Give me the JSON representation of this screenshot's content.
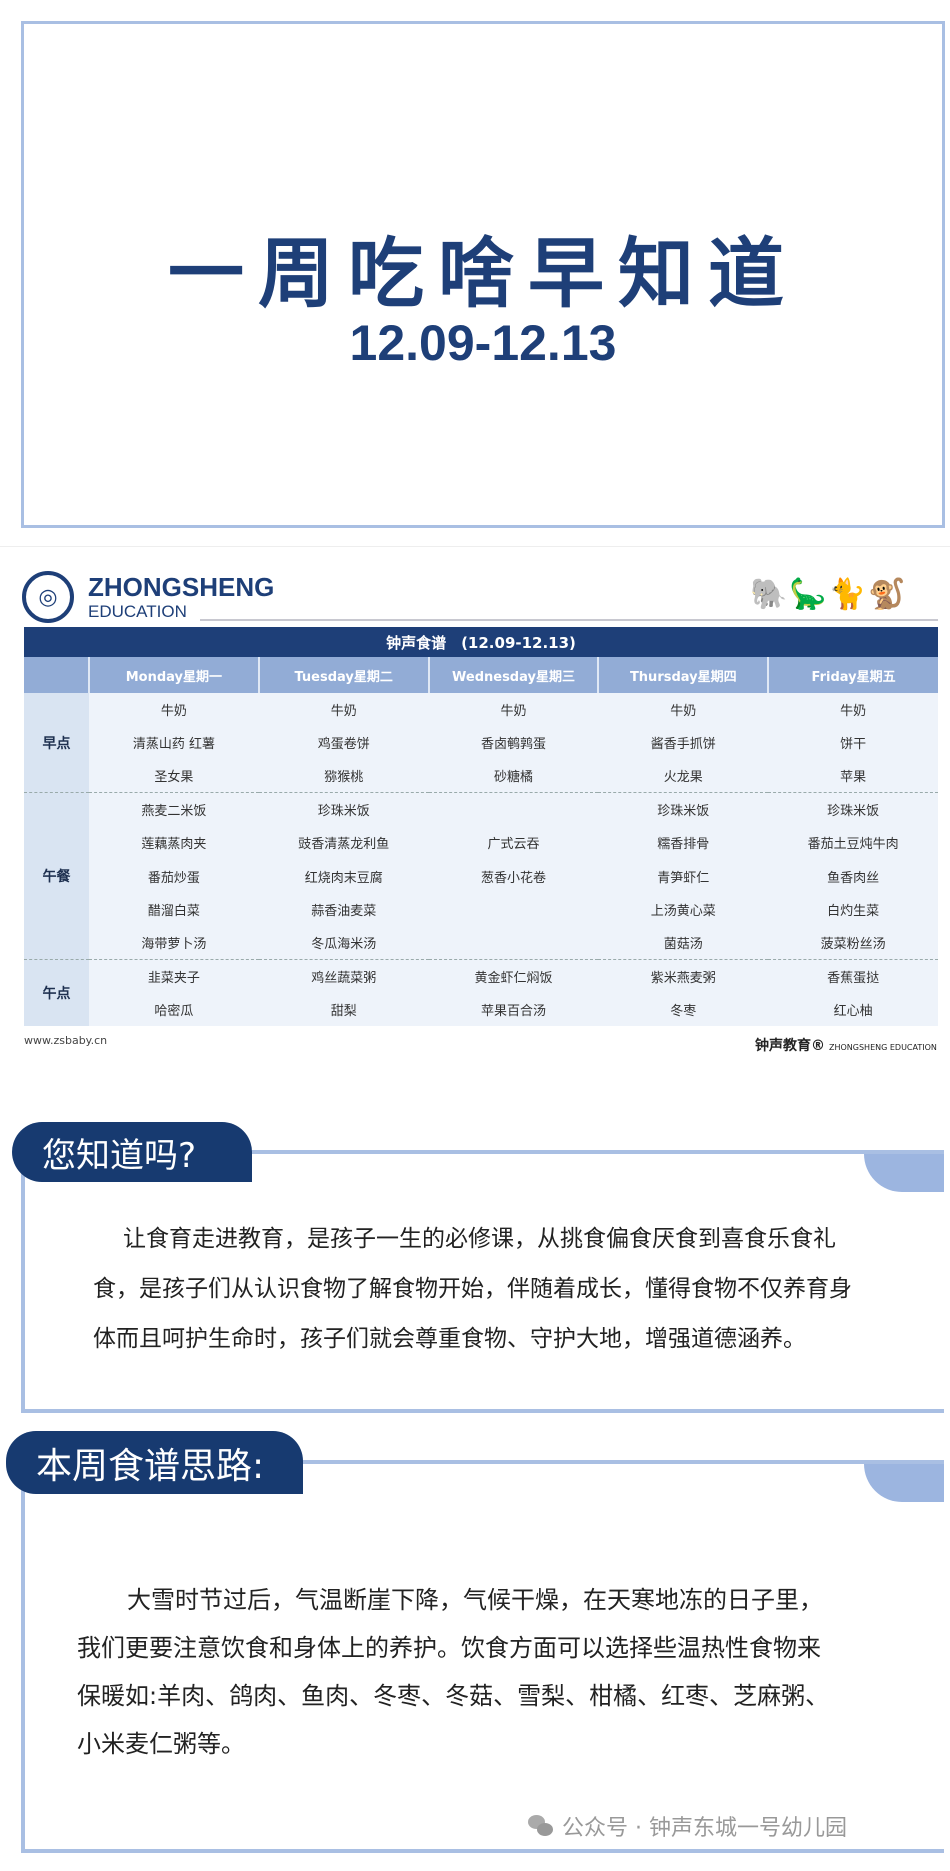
{
  "hero": {
    "title": "一周吃啥早知道",
    "date": "12.09-12.13"
  },
  "brand": {
    "name": "ZHONGSHENG",
    "sub": "EDUCATION",
    "website": "www.zsbaby.cn",
    "footer_cn": "钟声教育",
    "footer_en": "ZHONGSHENG EDUCATION"
  },
  "menu": {
    "title": "钟声食谱　(12.09-12.13)",
    "days": [
      "Monday星期一",
      "Tuesday星期二",
      "Wednesday星期三",
      "Thursday星期四",
      "Friday星期五"
    ],
    "sections": [
      {
        "label": "早点",
        "rows": [
          [
            "牛奶",
            "牛奶",
            "牛奶",
            "牛奶",
            "牛奶"
          ],
          [
            "清蒸山药  红薯",
            "鸡蛋卷饼",
            "香卤鹌鹑蛋",
            "酱香手抓饼",
            "饼干"
          ],
          [
            "圣女果",
            "猕猴桃",
            "砂糖橘",
            "火龙果",
            "苹果"
          ]
        ]
      },
      {
        "label": "午餐",
        "rows": [
          [
            "燕麦二米饭",
            "珍珠米饭",
            "",
            "珍珠米饭",
            "珍珠米饭"
          ],
          [
            "莲藕蒸肉夹",
            "豉香清蒸龙利鱼",
            "广式云吞",
            "糯香排骨",
            "番茄土豆炖牛肉"
          ],
          [
            "番茄炒蛋",
            "红烧肉末豆腐",
            "葱香小花卷",
            "青笋虾仁",
            "鱼香肉丝"
          ],
          [
            "醋溜白菜",
            "蒜香油麦菜",
            "",
            "上汤黄心菜",
            "白灼生菜"
          ],
          [
            "海带萝卜汤",
            "冬瓜海米汤",
            "",
            "菌菇汤",
            "菠菜粉丝汤"
          ]
        ]
      },
      {
        "label": "午点",
        "rows": [
          [
            "韭菜夹子",
            "鸡丝蔬菜粥",
            "黄金虾仁焖饭",
            "紫米燕麦粥",
            "香蕉蛋挞"
          ],
          [
            "哈密瓜",
            "甜梨",
            "苹果百合汤",
            "冬枣",
            "红心柚"
          ]
        ]
      }
    ]
  },
  "know": {
    "tab": "您知道吗?",
    "lines": [
      "让食育走进教育，是孩子一生的必修课，从挑食偏食厌食到喜食乐食礼",
      "食，是孩子们从认识食物了解食物开始，伴随着成长，懂得食物不仅养育身",
      "体而且呵护生命时，孩子们就会尊重食物、守护大地，增强道德涵养。"
    ]
  },
  "idea": {
    "tab": "本周食谱思路:",
    "lines": [
      "大雪时节过后，气温断崖下降，气候干燥，在天寒地冻的日子里，",
      "我们更要注意饮食和身体上的养护。饮食方面可以选择些温热性食物来",
      "保暖如:羊肉、鸽肉、鱼肉、冬枣、冬菇、雪梨、柑橘、红枣、芝麻粥、",
      "小米麦仁粥等。"
    ]
  },
  "watermark": "公众号 · 钟声东城一号幼儿园",
  "colors": {
    "navy": "#1e3f78",
    "light_blue": "#a9bfe3",
    "header_blue": "#92acd6"
  }
}
